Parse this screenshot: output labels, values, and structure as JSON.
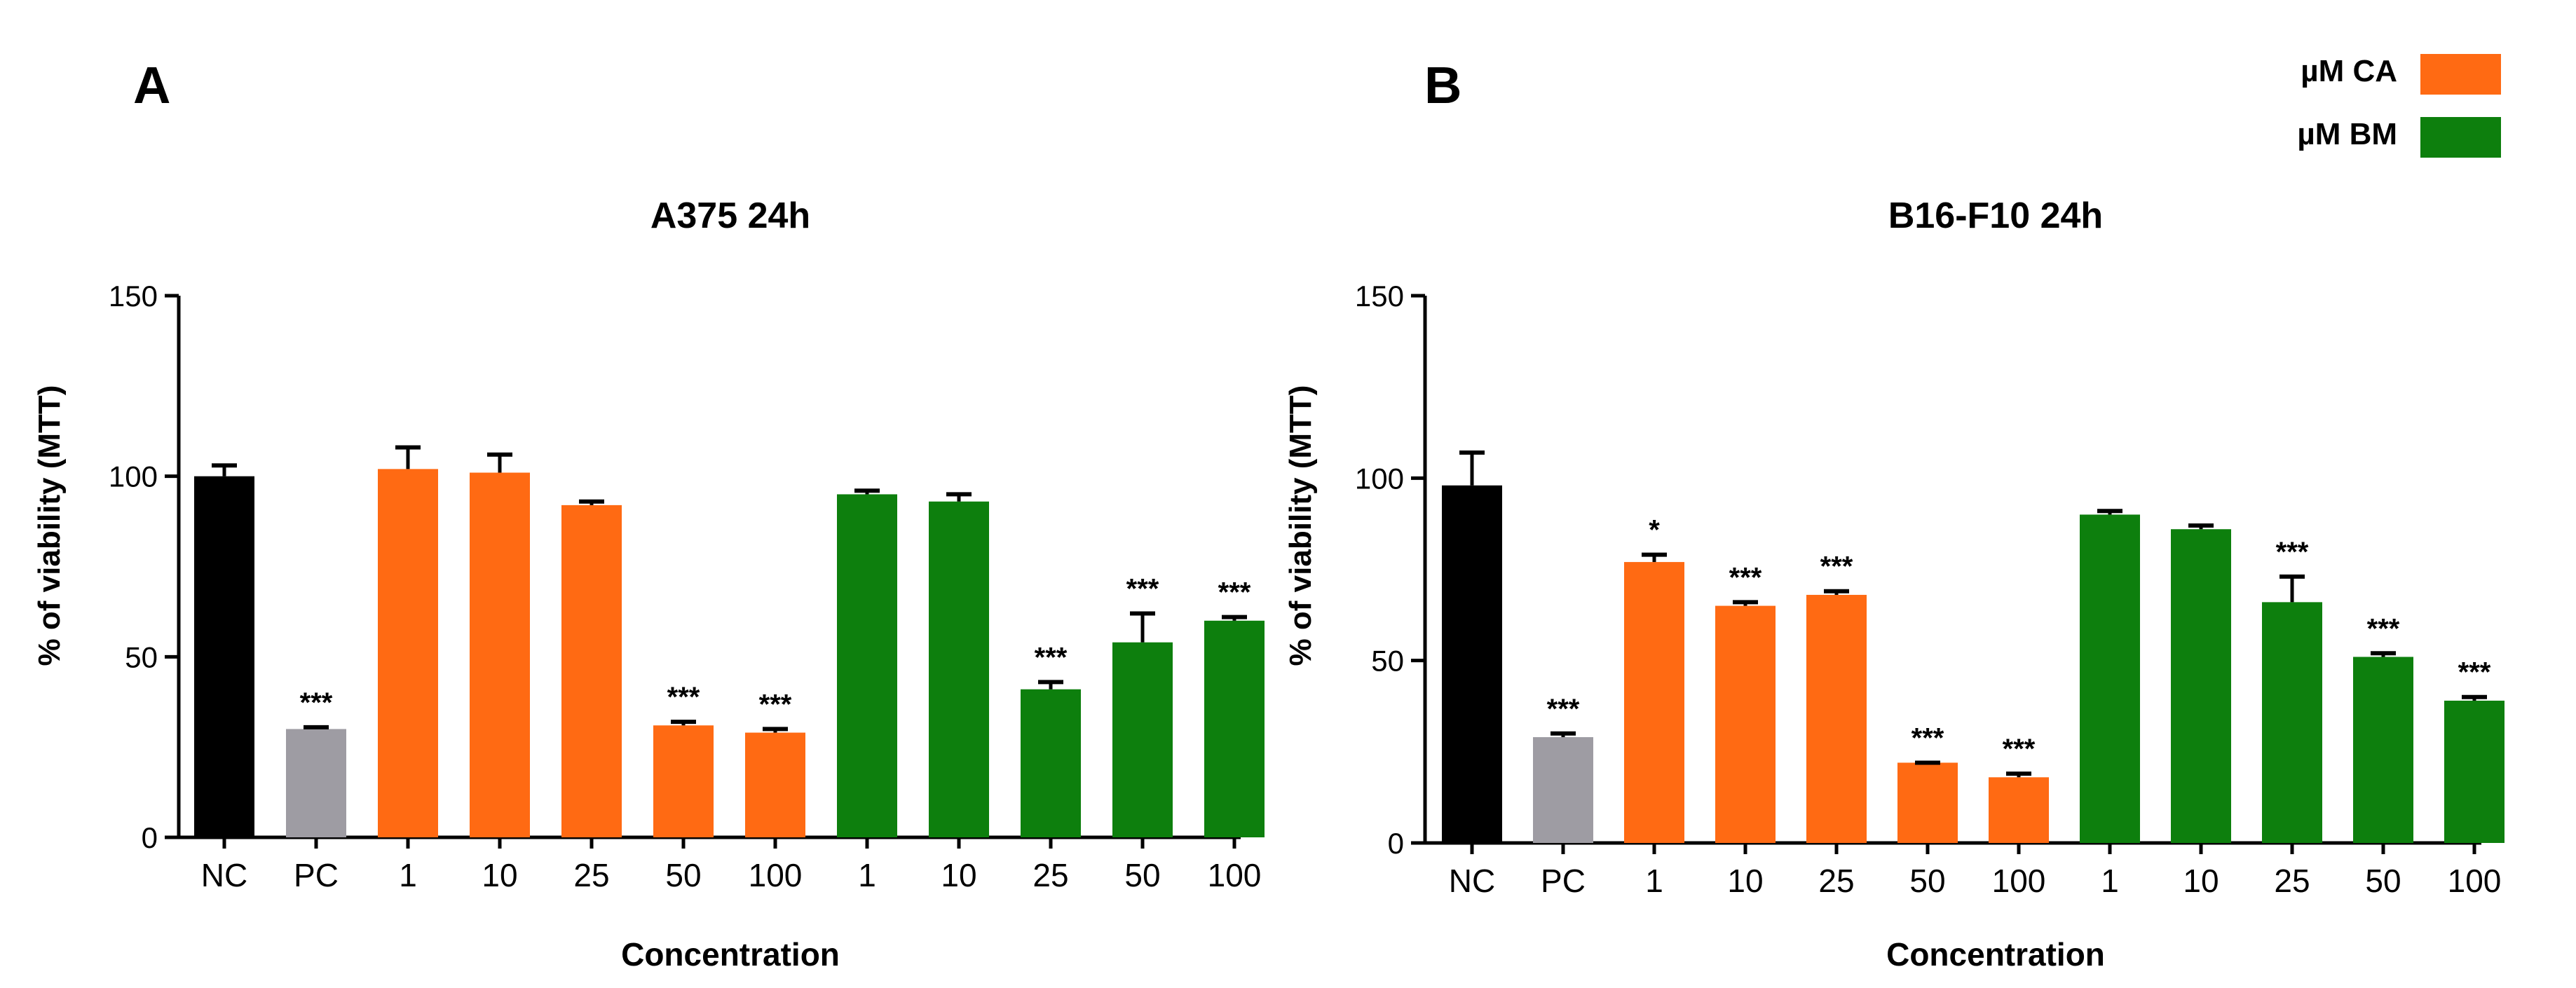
{
  "figure": {
    "legend": [
      {
        "label": "µM CA",
        "color": "#ff6a13"
      },
      {
        "label": "µM BM",
        "color": "#0d7f0d"
      }
    ],
    "colors": {
      "NC": "#000000",
      "PC": "#9e9ca3",
      "CA": "#ff6a13",
      "BM": "#0d7f0d",
      "axis": "#000000"
    }
  },
  "chart_data": [
    {
      "panel": "A",
      "type": "bar",
      "title": "A375 24h",
      "xlabel": "Concentration",
      "ylabel": "% of viability (MTT)",
      "ylim": [
        0,
        150
      ],
      "yticks": [
        0,
        50,
        100,
        150
      ],
      "categories": [
        "NC",
        "PC",
        "1",
        "10",
        "25",
        "50",
        "100",
        "1",
        "10",
        "25",
        "50",
        "100"
      ],
      "groups": [
        "NC",
        "PC",
        "CA",
        "CA",
        "CA",
        "CA",
        "CA",
        "BM",
        "BM",
        "BM",
        "BM",
        "BM"
      ],
      "values": [
        100,
        30,
        102,
        101,
        92,
        31,
        29,
        95,
        93,
        41,
        54,
        60
      ],
      "errors": [
        3,
        0.5,
        6,
        5,
        1,
        1,
        1,
        1,
        2,
        2,
        8,
        1
      ],
      "significance": [
        "",
        "***",
        "",
        "",
        "",
        "***",
        "***",
        "",
        "",
        "***",
        "***",
        "***"
      ]
    },
    {
      "panel": "B",
      "type": "bar",
      "title": "B16-F10 24h",
      "xlabel": "Concentration",
      "ylabel": "% of viability (MTT)",
      "ylim": [
        0,
        150
      ],
      "yticks": [
        0,
        50,
        100,
        150
      ],
      "categories": [
        "NC",
        "PC",
        "1",
        "10",
        "25",
        "50",
        "100",
        "1",
        "10",
        "25",
        "50",
        "100"
      ],
      "groups": [
        "NC",
        "PC",
        "CA",
        "CA",
        "CA",
        "CA",
        "CA",
        "BM",
        "BM",
        "BM",
        "BM",
        "BM"
      ],
      "values": [
        98,
        29,
        77,
        65,
        68,
        22,
        18,
        90,
        86,
        66,
        51,
        39
      ],
      "errors": [
        9,
        1,
        2,
        1,
        1,
        0,
        1,
        1,
        1,
        7,
        1,
        1
      ],
      "significance": [
        "",
        "***",
        "*",
        "***",
        "***",
        "***",
        "***",
        "",
        "",
        "***",
        "***",
        "***"
      ]
    }
  ]
}
